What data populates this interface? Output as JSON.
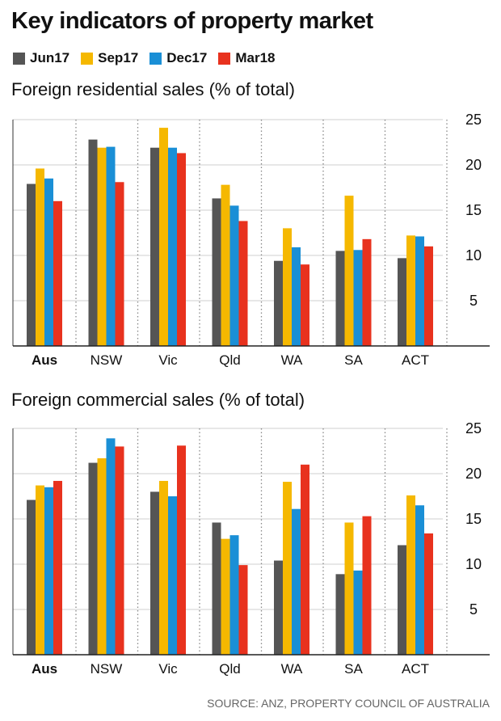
{
  "title": "Key indicators of property market",
  "source": "SOURCE: ANZ, PROPERTY COUNCIL OF AUSTRALIA",
  "legend": [
    {
      "name": "Jun17",
      "color": "#555555"
    },
    {
      "name": "Sep17",
      "color": "#f5b800"
    },
    {
      "name": "Dec17",
      "color": "#1a8fd6"
    },
    {
      "name": "Mar18",
      "color": "#e8321e"
    }
  ],
  "chart_data": [
    {
      "type": "bar",
      "title": "Foreign residential sales (% of total)",
      "categories": [
        "Aus",
        "NSW",
        "Vic",
        "Qld",
        "WA",
        "SA",
        "ACT"
      ],
      "bold_category": "Aus",
      "series": [
        {
          "name": "Jun17",
          "color": "#555555",
          "values": [
            17.9,
            22.8,
            21.9,
            16.3,
            9.4,
            10.5,
            9.7
          ]
        },
        {
          "name": "Sep17",
          "color": "#f5b800",
          "values": [
            19.6,
            21.9,
            24.1,
            17.8,
            13.0,
            16.6,
            12.2
          ]
        },
        {
          "name": "Dec17",
          "color": "#1a8fd6",
          "values": [
            18.5,
            22.0,
            21.9,
            15.5,
            10.9,
            10.6,
            12.1
          ]
        },
        {
          "name": "Mar18",
          "color": "#e8321e",
          "values": [
            16.0,
            18.1,
            21.3,
            13.8,
            9.0,
            11.8,
            11.0
          ]
        }
      ],
      "yticks": [
        5,
        10,
        15,
        20,
        25
      ],
      "ylim": [
        0,
        25
      ],
      "grid": true,
      "ytick_side": "right"
    },
    {
      "type": "bar",
      "title": "Foreign commercial sales (% of total)",
      "categories": [
        "Aus",
        "NSW",
        "Vic",
        "Qld",
        "WA",
        "SA",
        "ACT"
      ],
      "bold_category": "Aus",
      "series": [
        {
          "name": "Jun17",
          "color": "#555555",
          "values": [
            17.1,
            21.2,
            18.0,
            14.6,
            10.4,
            8.9,
            12.1
          ]
        },
        {
          "name": "Sep17",
          "color": "#f5b800",
          "values": [
            18.7,
            21.7,
            19.2,
            12.8,
            19.1,
            14.6,
            17.6
          ]
        },
        {
          "name": "Dec17",
          "color": "#1a8fd6",
          "values": [
            18.5,
            23.9,
            17.5,
            13.2,
            16.1,
            9.3,
            16.5
          ]
        },
        {
          "name": "Mar18",
          "color": "#e8321e",
          "values": [
            19.2,
            23.0,
            23.1,
            9.9,
            21.0,
            15.3,
            13.4
          ]
        }
      ],
      "yticks": [
        5,
        10,
        15,
        20,
        25
      ],
      "ylim": [
        0,
        25
      ],
      "grid": true,
      "ytick_side": "right"
    }
  ]
}
